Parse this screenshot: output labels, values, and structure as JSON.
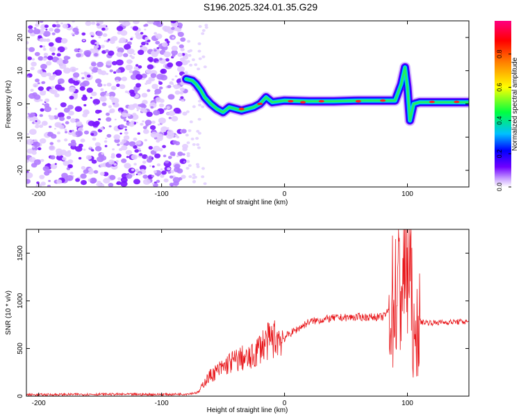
{
  "title": "S196.2025.324.01.35.G29",
  "chart_data": [
    {
      "type": "heatmap",
      "xlabel": "Height of straight line (km)",
      "ylabel": "Frequency (Hz)",
      "xlim": [
        -210,
        150
      ],
      "ylim": [
        -25,
        25
      ],
      "xticks": [
        -200,
        -100,
        0,
        100
      ],
      "yticks": [
        -20,
        -10,
        0,
        10,
        20
      ],
      "colorbar": {
        "label": "Normalized spectral amplitude",
        "range": [
          0.0,
          1.0
        ],
        "ticks": [
          "0.0",
          "0.2",
          "0.4",
          "0.6",
          "0.8"
        ],
        "colors": [
          "#ffffff",
          "#7000ff",
          "#0000ff",
          "#00c0ff",
          "#00ff40",
          "#ffff00",
          "#ff8000",
          "#ff0000",
          "#ff0080"
        ]
      },
      "noise_region_x": [
        -210,
        -80
      ],
      "ridge_line": {
        "x": [
          -80,
          -75,
          -72,
          -68,
          -65,
          -60,
          -55,
          -50,
          -45,
          -40,
          -35,
          -30,
          -25,
          -20,
          -15,
          -10,
          0,
          20,
          40,
          60,
          80,
          90,
          95,
          98,
          100,
          102,
          105,
          110,
          130,
          150
        ],
        "y": [
          7.5,
          7.0,
          6.0,
          4.0,
          2.0,
          0.0,
          -1.5,
          -2.5,
          -1.0,
          -1.5,
          -2.0,
          -1.5,
          -1.0,
          0.0,
          2.0,
          0.5,
          1.0,
          0.8,
          0.8,
          1.0,
          1.0,
          1.0,
          6.0,
          11.0,
          5.0,
          -5.0,
          0.0,
          0.5,
          0.5,
          0.5
        ]
      }
    },
    {
      "type": "line",
      "xlabel": "Height of straight line (km)",
      "ylabel": "SNR (10 * v/v)",
      "xlim": [
        -210,
        150
      ],
      "ylim": [
        0,
        1750
      ],
      "xticks": [
        -200,
        -100,
        0,
        100
      ],
      "yticks": [
        0,
        500,
        1000,
        1500
      ],
      "series": [
        {
          "name": "SNR",
          "color": "#e8161a",
          "x": [
            -210,
            -150,
            -100,
            -80,
            -70,
            -65,
            -60,
            -55,
            -50,
            -45,
            -40,
            -35,
            -30,
            -25,
            -20,
            -10,
            0,
            10,
            20,
            30,
            40,
            60,
            80,
            85,
            88,
            92,
            95,
            98,
            100,
            102,
            104,
            106,
            108,
            110,
            120,
            140,
            150
          ],
          "values": [
            15,
            20,
            18,
            22,
            40,
            150,
            220,
            260,
            300,
            350,
            370,
            400,
            380,
            420,
            520,
            600,
            620,
            700,
            780,
            800,
            820,
            830,
            830,
            900,
            1000,
            1100,
            1200,
            1400,
            1500,
            1300,
            900,
            400,
            800,
            780,
            770,
            780,
            780
          ]
        }
      ]
    }
  ]
}
